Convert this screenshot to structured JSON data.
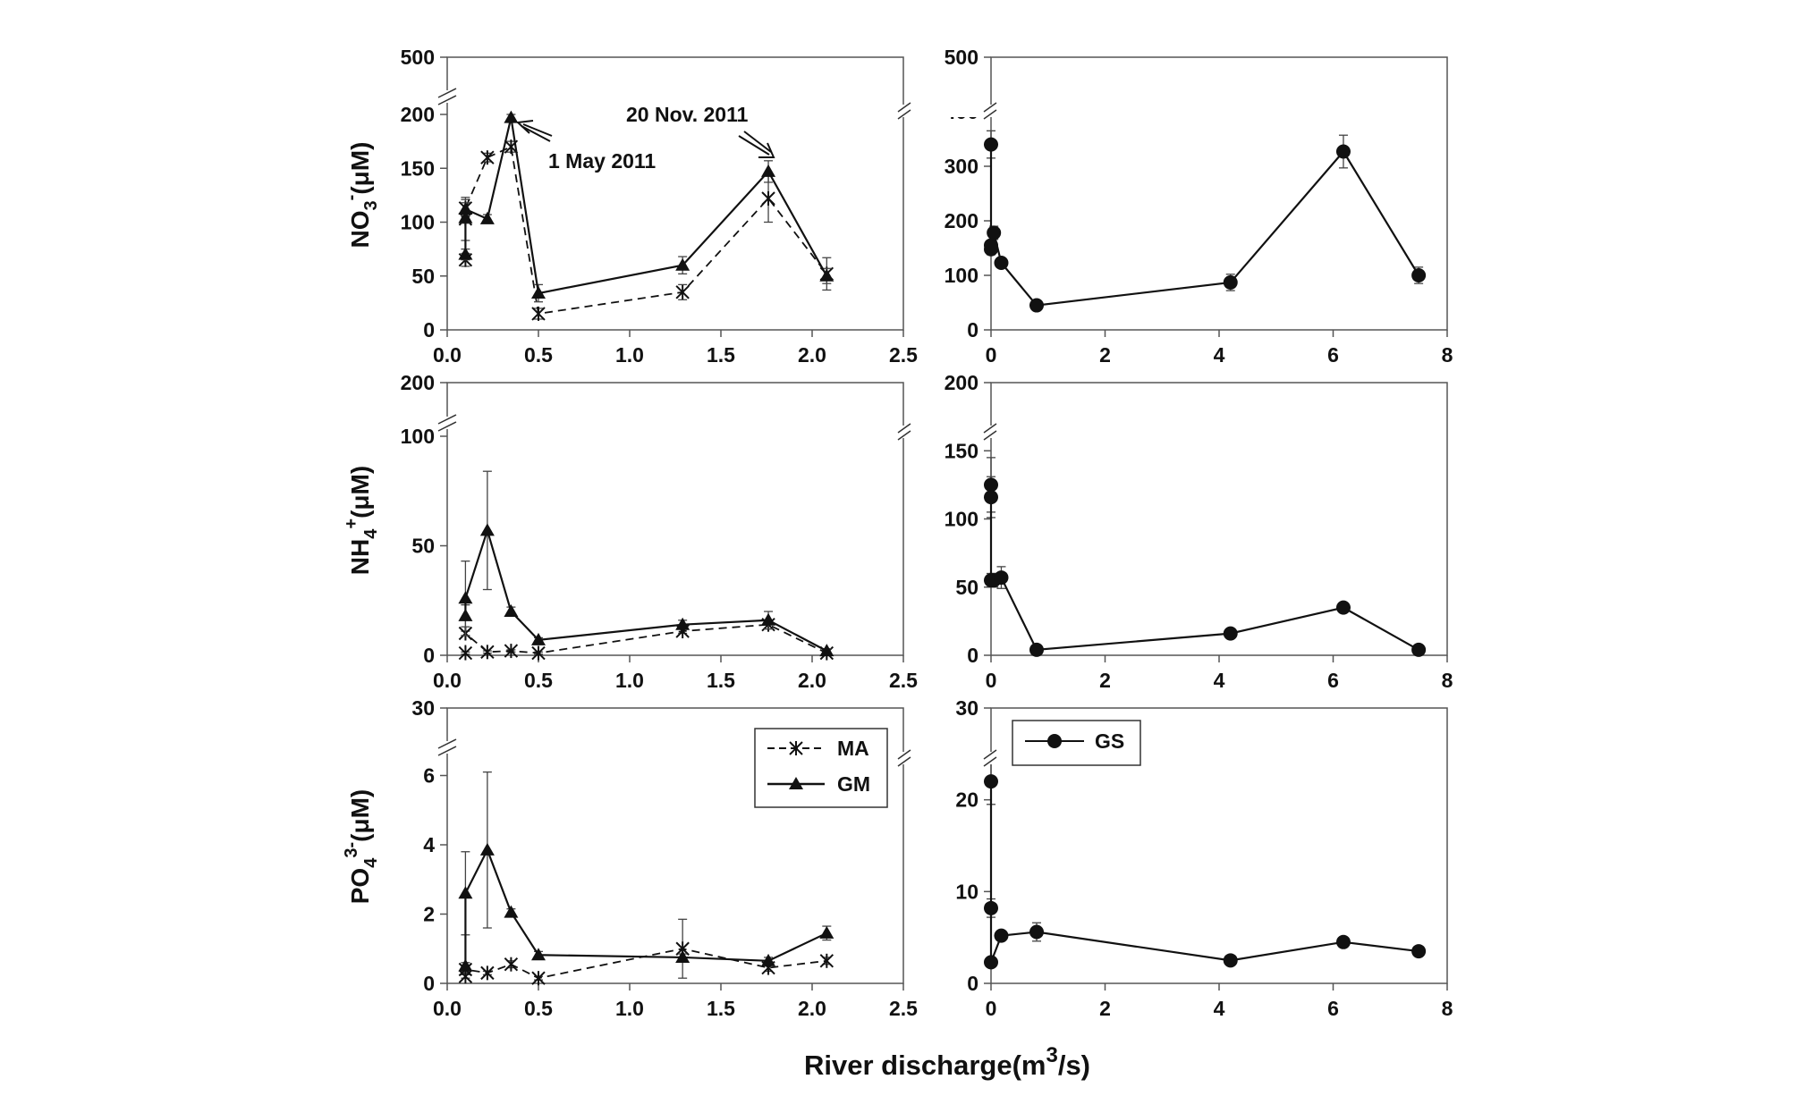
{
  "figure": {
    "xlabel": {
      "main": "River discharge(m",
      "sup": "3",
      "tail": "/s)"
    }
  },
  "panels": {
    "nitrate": {
      "label": {
        "main": "NO",
        "sub": "3",
        "sup": "-",
        "tail": "(μM)"
      }
    },
    "ammonium": {
      "label": {
        "main": "NH",
        "sub": "4",
        "sup": "+",
        "tail": "(μM)"
      }
    },
    "phosphate": {
      "label": {
        "main": "PO",
        "sub": "4",
        "sup": "3-",
        "tail": "(μM)"
      }
    }
  },
  "legend_left": {
    "items": [
      "MA",
      "GM"
    ]
  },
  "legend_right": {
    "items": [
      "GS"
    ]
  },
  "chart_data": [
    {
      "id": "nitrate-left",
      "type": "line",
      "xlim": [
        0,
        2.5
      ],
      "xticks": [
        "0.0",
        "0.5",
        "1.0",
        "1.5",
        "2.0",
        "2.5"
      ],
      "y_axis_break": {
        "lower_range": [
          0,
          200
        ],
        "lower_ticks": [
          "0",
          "50",
          "100",
          "150",
          "200"
        ],
        "upper_tick": "500"
      },
      "annotations": [
        {
          "text": "1 May 2011",
          "points_to": [
            0.35,
            197
          ]
        },
        {
          "text": "20 Nov. 2011",
          "points_to": [
            1.75,
            148
          ]
        }
      ],
      "series": [
        {
          "name": "MA",
          "marker": "x",
          "line": "dashed",
          "x": [
            0.1,
            0.1,
            0.1,
            0.22,
            0.35,
            0.5,
            1.29,
            1.76,
            2.08
          ],
          "y": [
            65,
            103,
            113,
            160,
            170,
            15,
            35,
            122,
            52
          ],
          "err": [
            6,
            20,
            8,
            4,
            5,
            5,
            7,
            22,
            15
          ]
        },
        {
          "name": "GM",
          "marker": "triangle",
          "line": "solid",
          "x": [
            0.1,
            0.1,
            0.1,
            0.22,
            0.35,
            0.5,
            1.29,
            1.76,
            2.08
          ],
          "y": [
            70,
            104,
            112,
            103,
            197,
            34,
            60,
            147,
            50
          ],
          "err": [
            5,
            5,
            6,
            4,
            3,
            8,
            8,
            10,
            7
          ]
        }
      ]
    },
    {
      "id": "nitrate-right",
      "type": "line",
      "xlim": [
        0,
        8
      ],
      "ylim": [
        0,
        500
      ],
      "xticks": [
        "0",
        "2",
        "4",
        "6",
        "8"
      ],
      "yticks": [
        "0",
        "100",
        "200",
        "300",
        "400",
        "500"
      ],
      "series": [
        {
          "name": "GS",
          "marker": "circle",
          "line": "solid",
          "x": [
            0.0,
            0.0,
            0.0,
            0.05,
            0.18,
            0.8,
            4.2,
            6.18,
            7.5
          ],
          "y": [
            340,
            148,
            155,
            178,
            123,
            45,
            87,
            327,
            100
          ],
          "err": [
            25,
            10,
            8,
            12,
            6,
            4,
            15,
            30,
            15
          ]
        }
      ]
    },
    {
      "id": "ammonium-left",
      "type": "line",
      "xlim": [
        0,
        2.5
      ],
      "xticks": [
        "0.0",
        "0.5",
        "1.0",
        "1.5",
        "2.0",
        "2.5"
      ],
      "y_axis_break": {
        "lower_range": [
          0,
          100
        ],
        "lower_ticks": [
          "0",
          "50",
          "100"
        ],
        "upper_tick": "200"
      },
      "series": [
        {
          "name": "MA",
          "marker": "x",
          "line": "dashed",
          "x": [
            0.1,
            0.1,
            0.22,
            0.35,
            0.5,
            1.29,
            1.76,
            2.08
          ],
          "y": [
            1,
            10,
            1.5,
            2,
            1,
            11,
            14,
            1
          ],
          "err": [
            0.5,
            1,
            0.5,
            0.5,
            0.5,
            1,
            2,
            0.5
          ]
        },
        {
          "name": "GM",
          "marker": "triangle",
          "line": "solid",
          "x": [
            0.1,
            0.1,
            0.22,
            0.35,
            0.5,
            1.29,
            1.76,
            2.08
          ],
          "y": [
            18,
            26,
            57,
            20,
            7,
            14,
            16,
            2
          ],
          "err": [
            5,
            17,
            27,
            2,
            1,
            2,
            4,
            1
          ]
        }
      ]
    },
    {
      "id": "ammonium-right",
      "type": "line",
      "xlim": [
        0,
        8
      ],
      "ylim": [
        0,
        200
      ],
      "xticks": [
        "0",
        "2",
        "4",
        "6",
        "8"
      ],
      "yticks": [
        "0",
        "50",
        "100",
        "150",
        "200"
      ],
      "series": [
        {
          "name": "GS",
          "marker": "circle",
          "line": "solid",
          "x": [
            0.0,
            0.0,
            0.0,
            0.05,
            0.18,
            0.8,
            4.2,
            6.18,
            7.5
          ],
          "y": [
            125,
            116,
            55,
            55,
            57,
            4,
            16,
            35,
            4
          ],
          "err": [
            20,
            15,
            5,
            5,
            8,
            1,
            2,
            3,
            1
          ]
        }
      ]
    },
    {
      "id": "phosphate-left",
      "type": "line",
      "xlim": [
        0,
        2.5
      ],
      "xticks": [
        "0.0",
        "0.5",
        "1.0",
        "1.5",
        "2.0",
        "2.5"
      ],
      "y_axis_break": {
        "lower_range": [
          0,
          6.4
        ],
        "lower_ticks": [
          "0",
          "2",
          "4",
          "6"
        ],
        "upper_tick": "30"
      },
      "series": [
        {
          "name": "MA",
          "marker": "x",
          "line": "dashed",
          "x": [
            0.1,
            0.1,
            0.22,
            0.35,
            0.5,
            1.29,
            1.76,
            2.08
          ],
          "y": [
            0.2,
            0.4,
            0.3,
            0.55,
            0.15,
            1.0,
            0.45,
            0.65
          ],
          "err": [
            0.05,
            0.1,
            0.05,
            0.1,
            0.05,
            0.85,
            0.1,
            0.1
          ]
        },
        {
          "name": "GM",
          "marker": "triangle",
          "line": "solid",
          "x": [
            0.1,
            0.1,
            0.22,
            0.35,
            0.5,
            1.29,
            1.76,
            2.08
          ],
          "y": [
            0.5,
            2.6,
            3.85,
            2.05,
            0.82,
            0.75,
            0.65,
            1.45
          ],
          "err": [
            0.1,
            1.2,
            2.25,
            0.1,
            0.1,
            0.1,
            0.1,
            0.2
          ]
        }
      ]
    },
    {
      "id": "phosphate-right",
      "type": "line",
      "xlim": [
        0,
        8
      ],
      "ylim": [
        0,
        30
      ],
      "xticks": [
        "0",
        "2",
        "4",
        "6",
        "8"
      ],
      "yticks": [
        "0",
        "10",
        "20",
        "30"
      ],
      "series": [
        {
          "name": "GS",
          "marker": "circle",
          "line": "solid",
          "x": [
            0.0,
            0.0,
            0.0,
            0.18,
            0.8,
            4.2,
            6.18,
            7.5
          ],
          "y": [
            22,
            8.2,
            2.3,
            5.2,
            5.6,
            2.5,
            4.5,
            3.5
          ],
          "err": [
            2.5,
            1,
            0.3,
            0.5,
            1,
            0.3,
            0.3,
            0.3
          ]
        }
      ]
    }
  ]
}
